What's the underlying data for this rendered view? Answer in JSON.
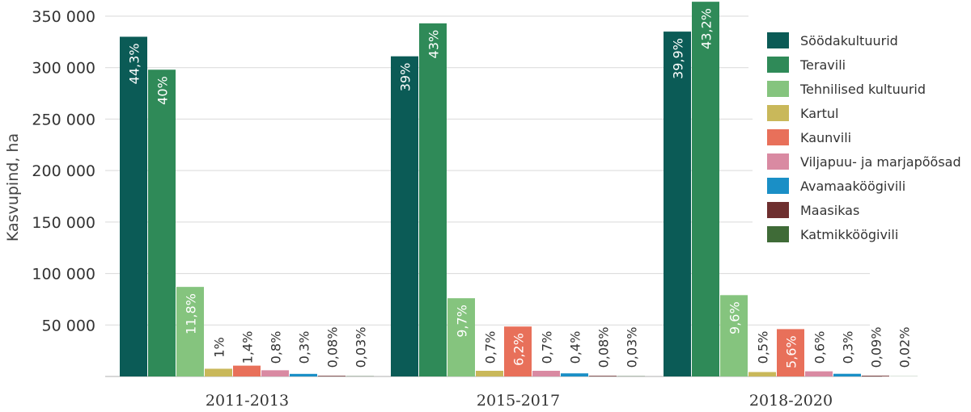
{
  "chart_data": {
    "type": "bar",
    "ylabel": "Kasvupind, ha",
    "ylim": [
      0,
      350000
    ],
    "y_ticks": [
      50000,
      100000,
      150000,
      200000,
      250000,
      300000,
      350000
    ],
    "y_tick_labels": [
      "50 000",
      "100 000",
      "150 000",
      "200 000",
      "250 000",
      "300 000",
      "350 000"
    ],
    "grid": true,
    "legend_position": "right",
    "categories": [
      "2011-2013",
      "2015-2017",
      "2018-2020"
    ],
    "series": [
      {
        "name": "Söödakultuurid",
        "color": "#0b5b56",
        "values": [
          330000,
          311000,
          335000
        ],
        "labels": [
          "44,3%",
          "39%",
          "39,9%"
        ]
      },
      {
        "name": "Teravili",
        "color": "#2f8a58",
        "values": [
          298000,
          343000,
          364000
        ],
        "labels": [
          "40%",
          "43%",
          "43,2%"
        ]
      },
      {
        "name": "Tehnilised kultuurid",
        "color": "#85c47e",
        "values": [
          87000,
          76000,
          79000
        ],
        "labels": [
          "11,8%",
          "9,7%",
          "9,6%"
        ]
      },
      {
        "name": "Kartul",
        "color": "#c9b85a",
        "values": [
          7500,
          5500,
          4300
        ],
        "labels": [
          "1%",
          "0,7%",
          "0,5%"
        ]
      },
      {
        "name": "Kaunvili",
        "color": "#e8705a",
        "values": [
          10500,
          48500,
          46000
        ],
        "labels": [
          "1,4%",
          "6,2%",
          "5,6%"
        ]
      },
      {
        "name": "Viljapuu- ja marjapõõsad",
        "color": "#d98aa2",
        "values": [
          6000,
          5500,
          5000
        ],
        "labels": [
          "0,8%",
          "0,7%",
          "0,6%"
        ]
      },
      {
        "name": "Avamaaköögivili",
        "color": "#1a8fc6",
        "values": [
          2500,
          3000,
          2600
        ],
        "labels": [
          "0,3%",
          "0,4%",
          "0,3%"
        ]
      },
      {
        "name": "Maasikas",
        "color": "#6e2f2f",
        "values": [
          600,
          600,
          700
        ],
        "labels": [
          "0,08%",
          "0,08%",
          "0,09%"
        ]
      },
      {
        "name": "Katmikköögivili",
        "color": "#3f6b37",
        "values": [
          200,
          200,
          150
        ],
        "labels": [
          "0,03%",
          "0,03%",
          "0,02%"
        ]
      }
    ]
  }
}
